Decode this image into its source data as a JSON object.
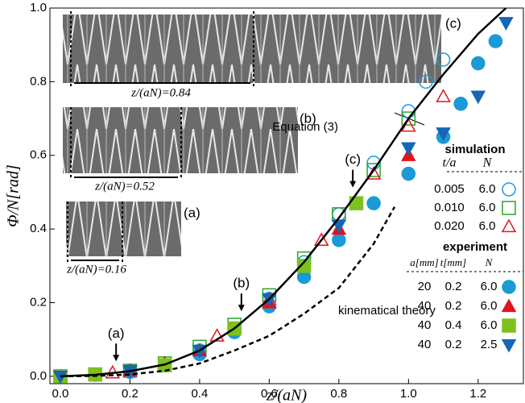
{
  "chart_data": {
    "type": "scatter",
    "xlabel": "z/(aN)",
    "ylabel": "Φ/N[rad]",
    "xlim": [
      -0.03,
      1.33
    ],
    "ylim": [
      -0.02,
      1.0
    ],
    "xticks": [
      {
        "value": 0,
        "label": "0.0"
      },
      {
        "value": 0.2,
        "label": "0.2"
      },
      {
        "value": 0.4,
        "label": "0.4"
      },
      {
        "value": 0.6,
        "label": "0.6"
      },
      {
        "value": 0.8,
        "label": "0.8"
      },
      {
        "value": 1,
        "label": "1.0"
      },
      {
        "value": 1.2,
        "label": "1.2"
      }
    ],
    "yticks": [
      {
        "value": 0,
        "label": "0.0"
      },
      {
        "value": 0.2,
        "label": "0.2"
      },
      {
        "value": 0.4,
        "label": "0.4"
      },
      {
        "value": 0.6,
        "label": "0.6"
      },
      {
        "value": 0.8,
        "label": "0.8"
      },
      {
        "value": 1,
        "label": "1.0"
      }
    ],
    "curves": [
      {
        "name": "Equation (3)",
        "style": "solid",
        "x": [
          0,
          0.1,
          0.2,
          0.3,
          0.4,
          0.5,
          0.6,
          0.7,
          0.8,
          0.9,
          1.0,
          1.1,
          1.2,
          1.28
        ],
        "y": [
          0,
          0.004,
          0.014,
          0.032,
          0.07,
          0.13,
          0.21,
          0.31,
          0.43,
          0.56,
          0.7,
          0.82,
          0.93,
          1.0
        ]
      },
      {
        "name": "kinematical theory",
        "style": "dashed",
        "x": [
          0,
          0.1,
          0.2,
          0.3,
          0.4,
          0.5,
          0.6,
          0.7,
          0.8,
          0.9,
          0.96
        ],
        "y": [
          0,
          0.001,
          0.005,
          0.015,
          0.035,
          0.07,
          0.11,
          0.17,
          0.24,
          0.36,
          0.46
        ]
      }
    ],
    "legend_groups": [
      {
        "title": "simulation",
        "headers": [
          "t/a",
          "N"
        ]
      },
      {
        "title": "experiment",
        "headers": [
          "a[mm]",
          "t[mm]",
          "N"
        ]
      }
    ],
    "series": [
      {
        "group": 0,
        "cells": [
          "0.005",
          "6.0"
        ],
        "marker": "circle",
        "filled": false,
        "color": "#1a9ad6",
        "x": [
          0,
          0.1,
          0.2,
          0.3,
          0.4,
          0.5,
          0.6,
          0.7,
          0.8,
          0.9,
          1.0,
          1.05,
          1.1
        ],
        "y": [
          0,
          0.005,
          0.015,
          0.03,
          0.07,
          0.13,
          0.21,
          0.31,
          0.44,
          0.58,
          0.72,
          0.8,
          0.86
        ]
      },
      {
        "group": 0,
        "cells": [
          "0.010",
          "6.0"
        ],
        "marker": "square",
        "filled": false,
        "color": "#2aa52a",
        "x": [
          0,
          0.1,
          0.2,
          0.3,
          0.4,
          0.5,
          0.6,
          0.7,
          0.8,
          0.9,
          1.0
        ],
        "y": [
          0,
          0.005,
          0.015,
          0.035,
          0.08,
          0.14,
          0.22,
          0.32,
          0.44,
          0.56,
          0.7
        ]
      },
      {
        "group": 0,
        "cells": [
          "0.020",
          "6.0"
        ],
        "marker": "triangle",
        "filled": false,
        "color": "#e0141e",
        "x": [
          0,
          0.15,
          0.3,
          0.45,
          0.6,
          0.75,
          0.9,
          1.0,
          1.1
        ],
        "y": [
          0,
          0.01,
          0.035,
          0.11,
          0.21,
          0.37,
          0.55,
          0.68,
          0.76
        ]
      },
      {
        "group": 1,
        "cells": [
          "20",
          "0.2",
          "6.0"
        ],
        "marker": "circle",
        "filled": true,
        "color": "#1a9ad6",
        "x": [
          0,
          0.1,
          0.2,
          0.3,
          0.4,
          0.5,
          0.6,
          0.7,
          0.8,
          0.9,
          1.0,
          1.1,
          1.15,
          1.2,
          1.25
        ],
        "y": [
          0,
          0.004,
          0.012,
          0.03,
          0.06,
          0.12,
          0.19,
          0.27,
          0.37,
          0.47,
          0.55,
          0.65,
          0.74,
          0.85,
          0.91
        ]
      },
      {
        "group": 1,
        "cells": [
          "40",
          "0.2",
          "6.0"
        ],
        "marker": "triangle",
        "filled": true,
        "color": "#e0141e",
        "x": [
          0,
          0.2,
          0.4,
          0.6,
          0.8,
          1.0
        ],
        "y": [
          0,
          0.015,
          0.07,
          0.2,
          0.4,
          0.6
        ]
      },
      {
        "group": 1,
        "cells": [
          "40",
          "0.4",
          "6.0"
        ],
        "marker": "square",
        "filled": true,
        "color": "#7dc11e",
        "x": [
          0,
          0.1,
          0.3,
          0.5,
          0.7,
          0.85
        ],
        "y": [
          0,
          0.005,
          0.03,
          0.13,
          0.3,
          0.47
        ]
      },
      {
        "group": 1,
        "cells": [
          "40",
          "0.2",
          "2.5"
        ],
        "marker": "triangle-down",
        "filled": true,
        "color": "#1566b5",
        "x": [
          0,
          0.2,
          0.4,
          0.6,
          0.8,
          1.0,
          1.1,
          1.2,
          1.28
        ],
        "y": [
          0,
          0.015,
          0.07,
          0.21,
          0.41,
          0.62,
          0.66,
          0.76,
          0.96
        ]
      }
    ],
    "annotations": [
      {
        "text": "(a)",
        "x": 0.16
      },
      {
        "text": "(b)",
        "x": 0.52
      },
      {
        "text": "(c)",
        "x": 0.84
      }
    ],
    "photo_labels": {
      "a": "(a)",
      "b": "(b)",
      "c": "(c)",
      "a_z": "z/(aN)=0.16",
      "b_z": "z/(aN)=0.52",
      "c_z": "z/(aN)=0.84"
    }
  }
}
